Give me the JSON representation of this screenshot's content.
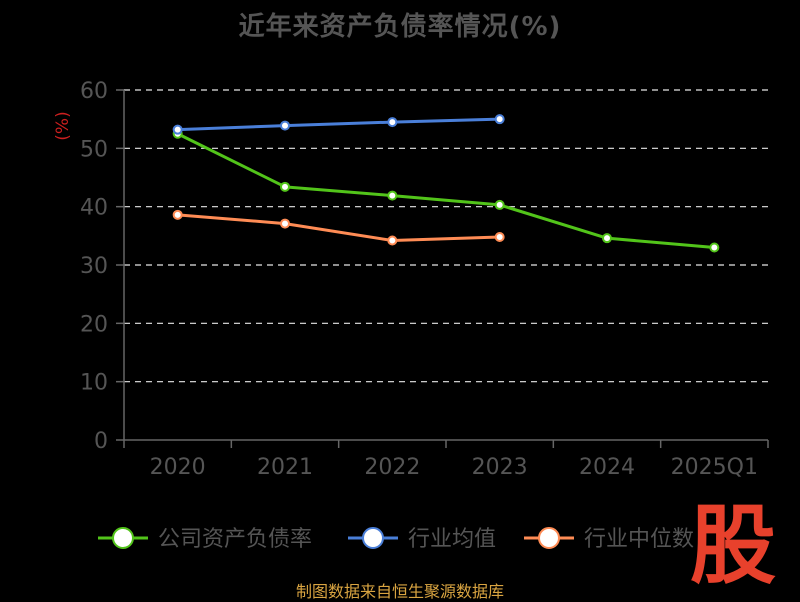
{
  "chart_data": {
    "type": "line",
    "title": "近年来资产负债率情况(%)",
    "ylabel": "(%)",
    "xlabel": "",
    "categories": [
      "2020",
      "2021",
      "2022",
      "2023",
      "2024",
      "2025Q1"
    ],
    "ylim": [
      0,
      60
    ],
    "yticks": [
      0,
      10,
      20,
      30,
      40,
      50,
      60
    ],
    "grid": true,
    "legend_position": "bottom",
    "series": [
      {
        "name": "公司资产负债率",
        "color": "#52c41a",
        "values": [
          52.5,
          43.4,
          41.9,
          40.3,
          34.6,
          33.0
        ]
      },
      {
        "name": "行业均值",
        "color": "#4a7fd9",
        "values": [
          53.2,
          53.9,
          54.5,
          55.0,
          null,
          null
        ]
      },
      {
        "name": "行业中位数",
        "color": "#ff8c55",
        "values": [
          38.6,
          37.1,
          34.2,
          34.8,
          null,
          null
        ]
      }
    ]
  },
  "watermark": "股",
  "source": "制图数据来自恒生聚源数据库"
}
